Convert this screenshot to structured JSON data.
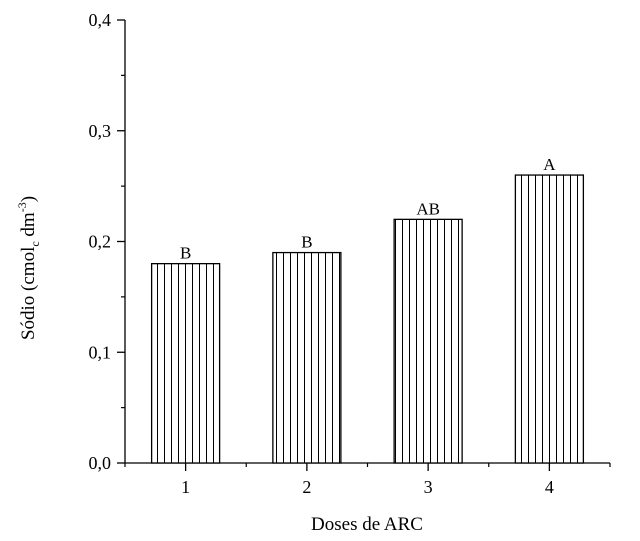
{
  "chart_data": {
    "type": "bar",
    "title": "",
    "xlabel": "Doses de ARC",
    "ylabel": {
      "main": "Sódio (cmol",
      "sub1": "c",
      "mid": " dm",
      "sup": "-3",
      "end": ")"
    },
    "categories": [
      "1",
      "2",
      "3",
      "4"
    ],
    "values": [
      0.18,
      0.19,
      0.22,
      0.26
    ],
    "bar_labels": [
      "B",
      "B",
      "AB",
      "A"
    ],
    "ylim": [
      0,
      0.4
    ],
    "xlim": [
      0.5,
      4.5
    ],
    "yticks": [
      {
        "value": 0.0,
        "label": "0,0"
      },
      {
        "value": 0.1,
        "label": "0,1"
      },
      {
        "value": 0.2,
        "label": "0,2"
      },
      {
        "value": 0.3,
        "label": "0,3"
      },
      {
        "value": 0.4,
        "label": "0,4"
      }
    ],
    "grid": false,
    "legend": "none",
    "bar_fill": "vertical-hatch",
    "colors": {
      "stroke": "#000000",
      "background": "#ffffff"
    }
  }
}
